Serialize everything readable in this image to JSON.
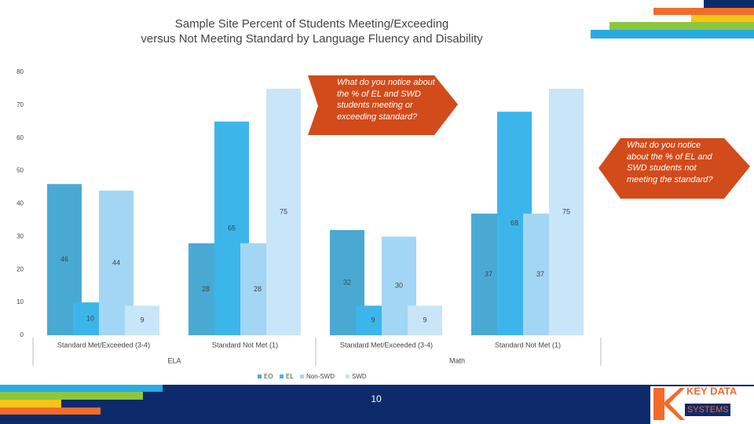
{
  "chart_data": {
    "type": "bar",
    "title": [
      "Sample Site Percent of Students Meeting/Exceeding",
      "versus Not Meeting Standard  by Language Fluency and Disability"
    ],
    "categories": [
      "Standard Met/Exceeded (3-4)",
      "Standard Not Met (1)",
      "Standard Met/Exceeded (3-4)",
      "Standard Not Met (1)"
    ],
    "groups": [
      "ELA",
      "Math"
    ],
    "series": [
      {
        "name": "EO",
        "color": "#4aa9d3",
        "values": [
          46,
          28,
          32,
          37
        ]
      },
      {
        "name": "EL",
        "color": "#3cb6ea",
        "values": [
          10,
          65,
          9,
          68
        ]
      },
      {
        "name": "Non-SWD",
        "color": "#a3d6f4",
        "values": [
          44,
          28,
          30,
          37
        ]
      },
      {
        "name": "SWD",
        "color": "#c9e5f8",
        "values": [
          9,
          75,
          9,
          75
        ]
      }
    ],
    "ylim": [
      0,
      80
    ],
    "yticks": [
      0,
      10,
      20,
      30,
      40,
      50,
      60,
      70,
      80
    ],
    "grid": false,
    "annotations": [
      "What do you notice about the % of EL and SWD students meeting or exceeding standard?",
      "What do you notice about the % of EL and SWD students not meeting the standard?"
    ]
  },
  "page_number": "10",
  "logo": {
    "name": "KEY DATA",
    "sub": "SYSTEMS"
  }
}
